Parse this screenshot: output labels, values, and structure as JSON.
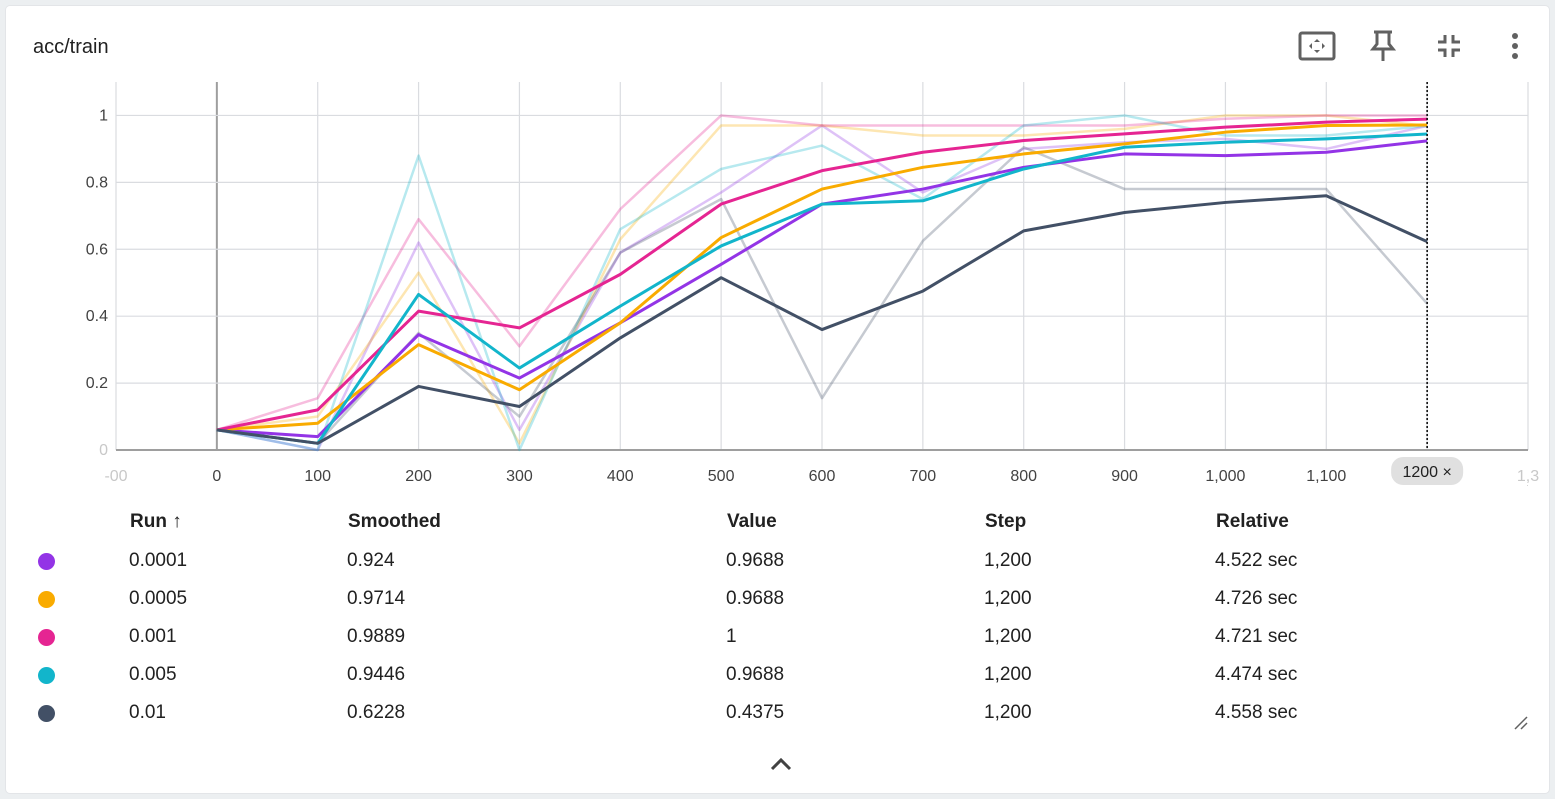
{
  "card": {
    "title": "acc/train"
  },
  "toolbar": {
    "icons": [
      "fit-to-screen-icon",
      "pin-icon",
      "collapse-icon",
      "more-vert-icon"
    ]
  },
  "axis": {
    "x_ticks": [
      "-00",
      "0",
      "100",
      "200",
      "300",
      "400",
      "500",
      "600",
      "700",
      "800",
      "900",
      "1,000",
      "1,100",
      "1,3"
    ],
    "y_ticks": [
      "0",
      "0.2",
      "0.4",
      "0.6",
      "0.8",
      "1"
    ],
    "cursor_step_label": "1200 ×"
  },
  "chart_data": {
    "type": "line",
    "title": "acc/train",
    "x": [
      0,
      100,
      200,
      300,
      400,
      500,
      600,
      700,
      800,
      900,
      1000,
      1100,
      1200
    ],
    "xlim": [
      -100,
      1300
    ],
    "ylim": [
      0,
      1.1
    ],
    "grid": true,
    "cursor_step": 1200,
    "series": [
      {
        "name": "0.0001",
        "color": "#9334e6",
        "raw": [
          0.06,
          0.0,
          0.62,
          0.06,
          0.59,
          0.77,
          0.97,
          0.77,
          0.9,
          0.92,
          0.93,
          0.9,
          0.9688
        ],
        "smoothed": [
          0.06,
          0.04,
          0.345,
          0.215,
          0.38,
          0.555,
          0.735,
          0.78,
          0.845,
          0.885,
          0.88,
          0.89,
          0.924
        ]
      },
      {
        "name": "0.0005",
        "color": "#f9ab00",
        "raw": [
          0.06,
          0.1,
          0.53,
          0.02,
          0.63,
          0.97,
          0.97,
          0.94,
          0.94,
          0.96,
          1.0,
          1.0,
          0.9688
        ],
        "smoothed": [
          0.06,
          0.08,
          0.315,
          0.18,
          0.38,
          0.635,
          0.78,
          0.845,
          0.885,
          0.915,
          0.95,
          0.97,
          0.9714
        ]
      },
      {
        "name": "0.001",
        "color": "#e52592",
        "raw": [
          0.06,
          0.155,
          0.69,
          0.31,
          0.72,
          1.0,
          0.97,
          0.97,
          0.97,
          0.97,
          0.99,
          1.0,
          1.0
        ],
        "smoothed": [
          0.06,
          0.12,
          0.415,
          0.365,
          0.525,
          0.735,
          0.835,
          0.89,
          0.925,
          0.945,
          0.965,
          0.98,
          0.9889
        ]
      },
      {
        "name": "0.005",
        "color": "#12b5cb",
        "raw": [
          0.06,
          0.0,
          0.88,
          0.0,
          0.66,
          0.84,
          0.91,
          0.75,
          0.97,
          1.0,
          0.94,
          0.94,
          0.9688
        ],
        "smoothed": [
          0.06,
          0.02,
          0.465,
          0.245,
          0.43,
          0.61,
          0.735,
          0.745,
          0.84,
          0.905,
          0.92,
          0.93,
          0.9446
        ]
      },
      {
        "name": "0.01",
        "color": "#425066",
        "raw": [
          0.06,
          0.02,
          0.35,
          0.1,
          0.59,
          0.75,
          0.155,
          0.625,
          0.905,
          0.78,
          0.78,
          0.78,
          0.4375
        ],
        "smoothed": [
          0.06,
          0.02,
          0.19,
          0.13,
          0.335,
          0.515,
          0.36,
          0.475,
          0.655,
          0.71,
          0.74,
          0.76,
          0.6228
        ]
      }
    ]
  },
  "table": {
    "headers": {
      "run": "Run ↑",
      "smoothed": "Smoothed",
      "value": "Value",
      "step": "Step",
      "relative": "Relative"
    },
    "rows": [
      {
        "run": "0.0001",
        "smoothed": "0.924",
        "value": "0.9688",
        "step": "1,200",
        "relative": "4.522 sec",
        "color": "#9334e6"
      },
      {
        "run": "0.0005",
        "smoothed": "0.9714",
        "value": "0.9688",
        "step": "1,200",
        "relative": "4.726 sec",
        "color": "#f9ab00"
      },
      {
        "run": "0.001",
        "smoothed": "0.9889",
        "value": "1",
        "step": "1,200",
        "relative": "4.721 sec",
        "color": "#e52592"
      },
      {
        "run": "0.005",
        "smoothed": "0.9446",
        "value": "0.9688",
        "step": "1,200",
        "relative": "4.474 sec",
        "color": "#12b5cb"
      },
      {
        "run": "0.01",
        "smoothed": "0.6228",
        "value": "0.4375",
        "step": "1,200",
        "relative": "4.558 sec",
        "color": "#425066"
      }
    ]
  }
}
